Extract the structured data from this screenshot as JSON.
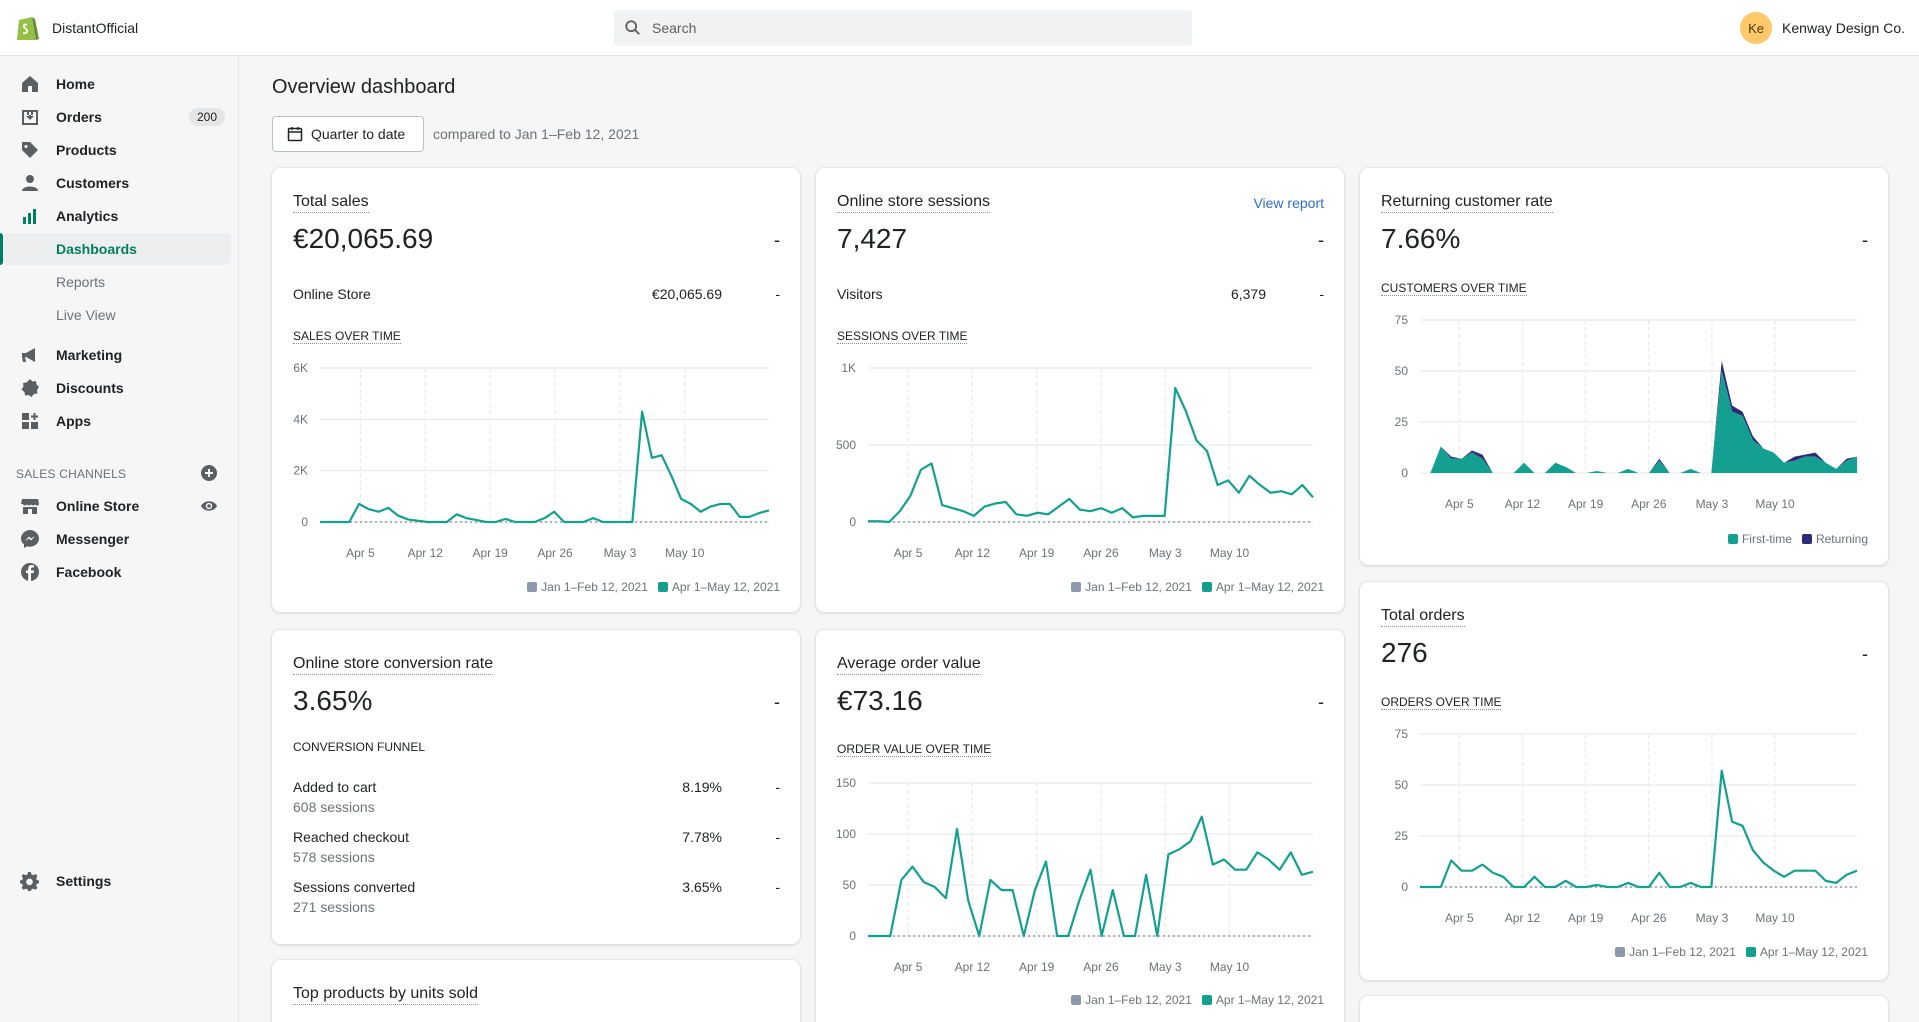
{
  "topbar": {
    "store_name": "DistantOfficial",
    "search_placeholder": "Search",
    "avatar_initials": "Ke",
    "account_name": "Kenway Design Co."
  },
  "sidebar": {
    "items": [
      {
        "label": "Home",
        "icon": "home-icon"
      },
      {
        "label": "Orders",
        "icon": "orders-icon",
        "badge": "200"
      },
      {
        "label": "Products",
        "icon": "tag-icon"
      },
      {
        "label": "Customers",
        "icon": "person-icon"
      },
      {
        "label": "Analytics",
        "icon": "bar-chart-icon"
      }
    ],
    "analytics_sub": [
      "Dashboards",
      "Reports",
      "Live View"
    ],
    "items2": [
      {
        "label": "Marketing",
        "icon": "megaphone-icon"
      },
      {
        "label": "Discounts",
        "icon": "discount-icon"
      },
      {
        "label": "Apps",
        "icon": "apps-icon"
      }
    ],
    "sales_channels_heading": "SALES CHANNELS",
    "channels": [
      {
        "label": "Online Store",
        "icon": "store-icon"
      },
      {
        "label": "Messenger",
        "icon": "messenger-icon"
      },
      {
        "label": "Facebook",
        "icon": "facebook-icon"
      }
    ],
    "settings": "Settings"
  },
  "main": {
    "title": "Overview dashboard",
    "date_range": "Quarter to date",
    "compare_text": "compared to Jan 1–Feb 12, 2021"
  },
  "colors": {
    "current": "#14a091",
    "previous": "#8c9aae",
    "returning": "#2e2a7a"
  },
  "legend": {
    "previous": "Jan 1–Feb 12, 2021",
    "current": "Apr 1–May 12, 2021",
    "first_time": "First-time",
    "returning": "Returning"
  },
  "cards": {
    "total_sales": {
      "title": "Total sales",
      "value": "€20,065.69",
      "dash": "-",
      "row_label": "Online Store",
      "row_value": "€20,065.69",
      "row_dash": "-",
      "section": "SALES OVER TIME"
    },
    "sessions": {
      "title": "Online store sessions",
      "link": "View report",
      "value": "7,427",
      "dash": "-",
      "row_label": "Visitors",
      "row_value": "6,379",
      "row_dash": "-",
      "section": "SESSIONS OVER TIME"
    },
    "returning": {
      "title": "Returning customer rate",
      "value": "7.66%",
      "dash": "-",
      "section": "CUSTOMERS OVER TIME"
    },
    "conversion": {
      "title": "Online store conversion rate",
      "value": "3.65%",
      "dash": "-",
      "section": "CONVERSION FUNNEL",
      "rows": [
        {
          "label": "Added to cart",
          "sub": "608 sessions",
          "value": "8.19%",
          "dash": "-"
        },
        {
          "label": "Reached checkout",
          "sub": "578 sessions",
          "value": "7.78%",
          "dash": "-"
        },
        {
          "label": "Sessions converted",
          "sub": "271 sessions",
          "value": "3.65%",
          "dash": "-"
        }
      ]
    },
    "aov": {
      "title": "Average order value",
      "value": "€73.16",
      "dash": "-",
      "section": "ORDER VALUE OVER TIME"
    },
    "orders": {
      "title": "Total orders",
      "value": "276",
      "dash": "-",
      "section": "ORDERS OVER TIME"
    },
    "top_products": {
      "title": "Top products by units sold"
    }
  },
  "chart_data": [
    {
      "id": "sales",
      "type": "line",
      "ylim": [
        0,
        6000
      ],
      "yticks": [
        "0",
        "2K",
        "4K",
        "6K"
      ],
      "ytick_values": [
        0,
        2000,
        4000,
        6000
      ],
      "xticks": [
        "Apr 5",
        "Apr 12",
        "Apr 19",
        "Apr 26",
        "May 3",
        "May 10"
      ],
      "series": [
        {
          "name": "Jan 1–Feb 12, 2021",
          "values": [
            0,
            0,
            0,
            0,
            0,
            0,
            0,
            0,
            0,
            0,
            0,
            0,
            0,
            0,
            0,
            0,
            0,
            0,
            0,
            0,
            0,
            0,
            0,
            0,
            0,
            0,
            0,
            0,
            0,
            0,
            0,
            0,
            0,
            0,
            0,
            0,
            0,
            0,
            0,
            0,
            0,
            0,
            0
          ]
        },
        {
          "name": "Apr 1–May 12, 2021",
          "values": [
            0,
            0,
            0,
            0,
            700,
            500,
            400,
            550,
            250,
            100,
            50,
            0,
            0,
            0,
            300,
            150,
            80,
            0,
            0,
            120,
            0,
            0,
            0,
            150,
            400,
            0,
            0,
            0,
            150,
            0,
            0,
            0,
            0,
            4300,
            2500,
            2600,
            1800,
            900,
            700,
            400,
            600,
            700,
            700,
            200,
            200,
            350,
            450
          ]
        }
      ]
    },
    {
      "id": "sessions",
      "type": "line",
      "ylim": [
        0,
        1000
      ],
      "yticks": [
        "0",
        "500",
        "1K"
      ],
      "ytick_values": [
        0,
        500,
        1000
      ],
      "xticks": [
        "Apr 5",
        "Apr 12",
        "Apr 19",
        "Apr 26",
        "May 3",
        "May 10"
      ],
      "series": [
        {
          "name": "Jan 1–Feb 12, 2021",
          "values": [
            0,
            0,
            0,
            0,
            0,
            0,
            0,
            0,
            0,
            0,
            0,
            0,
            0,
            0,
            0,
            0,
            0,
            0,
            0,
            0,
            0,
            0,
            0,
            0,
            0,
            0,
            0,
            0,
            0,
            0,
            0,
            0,
            0,
            0,
            0,
            0,
            0,
            0,
            0,
            0,
            0
          ]
        },
        {
          "name": "Apr 1–May 12, 2021",
          "values": [
            5,
            5,
            0,
            70,
            170,
            340,
            380,
            110,
            90,
            70,
            40,
            100,
            120,
            130,
            50,
            40,
            60,
            50,
            100,
            150,
            80,
            70,
            90,
            60,
            90,
            30,
            40,
            40,
            40,
            870,
            720,
            530,
            460,
            240,
            270,
            190,
            300,
            240,
            190,
            200,
            180,
            240,
            160
          ]
        }
      ]
    },
    {
      "id": "customers",
      "type": "area",
      "ylim": [
        0,
        75
      ],
      "yticks": [
        "0",
        "25",
        "50",
        "75"
      ],
      "ytick_values": [
        0,
        25,
        50,
        75
      ],
      "xticks": [
        "Apr 5",
        "Apr 12",
        "Apr 19",
        "Apr 26",
        "May 3",
        "May 10"
      ],
      "series": [
        {
          "name": "First-time",
          "values": [
            0,
            0,
            13,
            7,
            7,
            10,
            7,
            0,
            0,
            0,
            5,
            0,
            0,
            5,
            3,
            0,
            0,
            1,
            0,
            0,
            2,
            0,
            0,
            6,
            0,
            0,
            2,
            0,
            0,
            50,
            30,
            28,
            16,
            12,
            10,
            5,
            6,
            8,
            8,
            5,
            2,
            6,
            8
          ]
        },
        {
          "name": "Returning",
          "values": [
            0,
            0,
            0,
            1,
            0,
            1,
            2,
            0,
            0,
            0,
            0,
            0,
            0,
            0,
            0,
            0,
            0,
            0,
            0,
            0,
            0,
            0,
            0,
            1,
            0,
            0,
            0,
            0,
            0,
            5,
            3,
            2,
            2,
            0,
            0,
            0,
            2,
            1,
            2,
            0,
            0,
            1,
            0
          ]
        }
      ]
    },
    {
      "id": "aov",
      "type": "line",
      "ylim": [
        0,
        150
      ],
      "yticks": [
        "0",
        "50",
        "100",
        "150"
      ],
      "ytick_values": [
        0,
        50,
        100,
        150
      ],
      "xticks": [
        "Apr 5",
        "Apr 12",
        "Apr 19",
        "Apr 26",
        "May 3",
        "May 10"
      ],
      "series": [
        {
          "name": "Jan 1–Feb 12, 2021",
          "values": [
            0,
            0,
            0,
            0,
            0,
            0,
            0,
            0,
            0,
            0,
            0,
            0,
            0,
            0,
            0,
            0,
            0,
            0,
            0,
            0,
            0,
            0,
            0,
            0,
            0,
            0,
            0,
            0,
            0,
            0,
            0,
            0,
            0,
            0,
            0,
            0,
            0,
            0,
            0,
            0,
            0,
            0,
            0
          ]
        },
        {
          "name": "Apr 1–May 12, 2021",
          "values": [
            0,
            0,
            0,
            55,
            68,
            53,
            48,
            37,
            105,
            35,
            0,
            55,
            45,
            45,
            0,
            45,
            73,
            0,
            0,
            35,
            65,
            0,
            45,
            0,
            0,
            60,
            0,
            80,
            85,
            93,
            117,
            70,
            75,
            65,
            65,
            82,
            75,
            65,
            82,
            60,
            63
          ]
        }
      ]
    },
    {
      "id": "orders",
      "type": "line",
      "ylim": [
        0,
        75
      ],
      "yticks": [
        "0",
        "25",
        "50",
        "75"
      ],
      "ytick_values": [
        0,
        25,
        50,
        75
      ],
      "xticks": [
        "Apr 5",
        "Apr 12",
        "Apr 19",
        "Apr 26",
        "May 3",
        "May 10"
      ],
      "series": [
        {
          "name": "Jan 1–Feb 12, 2021",
          "values": [
            0,
            0,
            0,
            0,
            0,
            0,
            0,
            0,
            0,
            0,
            0,
            0,
            0,
            0,
            0,
            0,
            0,
            0,
            0,
            0,
            0,
            0,
            0,
            0,
            0,
            0,
            0,
            0,
            0,
            0,
            0,
            0,
            0,
            0,
            0,
            0,
            0,
            0,
            0,
            0,
            0,
            0
          ]
        },
        {
          "name": "Apr 1–May 12, 2021",
          "values": [
            0,
            0,
            0,
            13,
            8,
            8,
            11,
            7,
            5,
            0,
            0,
            5,
            0,
            0,
            3,
            0,
            0,
            1,
            0,
            0,
            2,
            0,
            0,
            7,
            0,
            0,
            2,
            0,
            0,
            57,
            32,
            30,
            18,
            12,
            8,
            5,
            8,
            8,
            8,
            3,
            2,
            6,
            8
          ]
        }
      ]
    }
  ]
}
